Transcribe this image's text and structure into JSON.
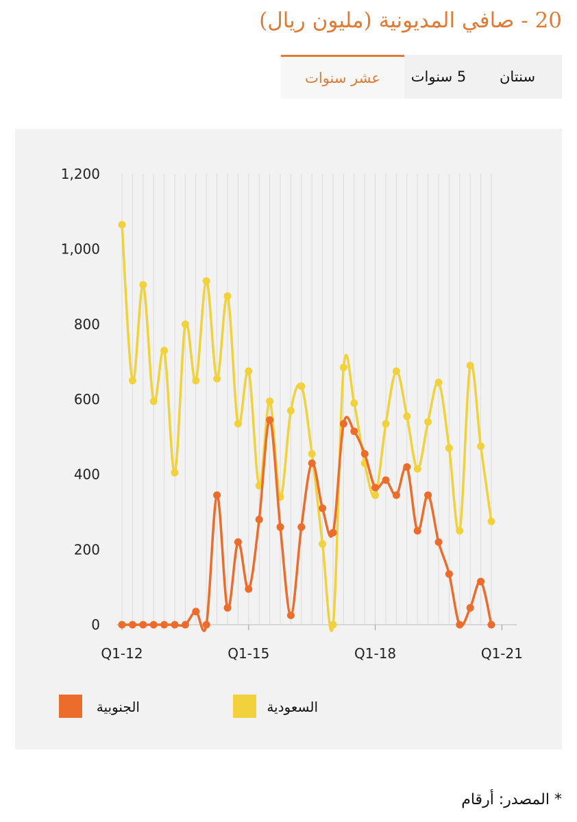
{
  "header": {
    "title": "20 - صافي المديونية (مليون ريال)"
  },
  "tabs": [
    {
      "label": "سنتان"
    },
    {
      "label": "5 سنوات"
    },
    {
      "label": "عشر سنوات",
      "active": true
    }
  ],
  "colors": {
    "accent": "#e07a35",
    "south": "#ec6c2c",
    "saudi": "#f2d23c"
  },
  "source": {
    "label": "* المصدر: أرقام"
  },
  "chart_data": {
    "type": "line",
    "title": "",
    "xlabel": "",
    "ylabel": "",
    "ylim": [
      0,
      1200
    ],
    "y_ticks": [
      "0",
      "200",
      "400",
      "600",
      "800",
      "1,000",
      "1,200"
    ],
    "x_tick_labels": [
      "Q1-12",
      "Q1-15",
      "Q1-18",
      "Q1-21"
    ],
    "grid": "vertical lines per quarter, horizontal line at 0",
    "legend_position": "bottom",
    "series": [
      {
        "name": "الجنوبية",
        "color": "#ec6c2c",
        "values": [
          0,
          0,
          0,
          0,
          0,
          0,
          0,
          35,
          0,
          345,
          45,
          220,
          95,
          280,
          545,
          260,
          25,
          260,
          430,
          310,
          245,
          535,
          515,
          455,
          365,
          385,
          345,
          420,
          250,
          345,
          220,
          135,
          0,
          45,
          115,
          0
        ]
      },
      {
        "name": "السعودية",
        "color": "#f2d23c",
        "values": [
          1065,
          650,
          905,
          595,
          730,
          405,
          800,
          650,
          915,
          655,
          875,
          535,
          675,
          370,
          595,
          340,
          570,
          635,
          455,
          215,
          0,
          685,
          590,
          430,
          345,
          535,
          675,
          555,
          415,
          540,
          645,
          470,
          250,
          690,
          475,
          275
        ]
      }
    ]
  }
}
